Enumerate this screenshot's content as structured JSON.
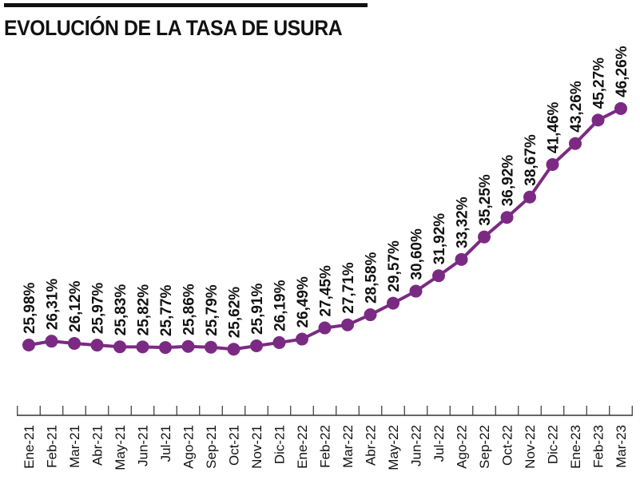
{
  "title": "EVOLUCIÓN DE LA TASA DE USURA",
  "chart_data": {
    "type": "line",
    "title": "EVOLUCIÓN DE LA TASA DE USURA",
    "categories": [
      "Ene-21",
      "Feb-21",
      "Mar-21",
      "Abr-21",
      "May-21",
      "Jun-21",
      "Jul-21",
      "Ago-21",
      "Sep-21",
      "Oct-21",
      "Nov-21",
      "Dic-21",
      "Ene-22",
      "Feb-22",
      "Mar-22",
      "Abr-22",
      "May-22",
      "Jun-22",
      "Jul-22",
      "Ago-22",
      "Sep-22",
      "Oct-22",
      "Nov-22",
      "Dic-22",
      "Ene-23",
      "Feb-23",
      "Mar-23"
    ],
    "values": [
      25.98,
      26.31,
      26.12,
      25.97,
      25.83,
      25.82,
      25.77,
      25.86,
      25.79,
      25.62,
      25.91,
      26.19,
      26.49,
      27.45,
      27.71,
      28.58,
      29.57,
      30.6,
      31.92,
      33.32,
      35.25,
      36.92,
      38.67,
      41.46,
      43.26,
      45.27,
      46.26
    ],
    "data_labels": [
      "25,98%",
      "26,31%",
      "26,12%",
      "25,97%",
      "25,83%",
      "25,82%",
      "25,77%",
      "25,86%",
      "25,79%",
      "25,62%",
      "25,91%",
      "26,19%",
      "26,49%",
      "27,45%",
      "27,71%",
      "28,58%",
      "29,57%",
      "30,60%",
      "31,92%",
      "33,32%",
      "35,25%",
      "36,92%",
      "38,67%",
      "41,46%",
      "43,26%",
      "45,27%",
      "46,26%"
    ],
    "xlabel": "",
    "ylabel": "",
    "grid": false,
    "color": "#7b2a83"
  }
}
